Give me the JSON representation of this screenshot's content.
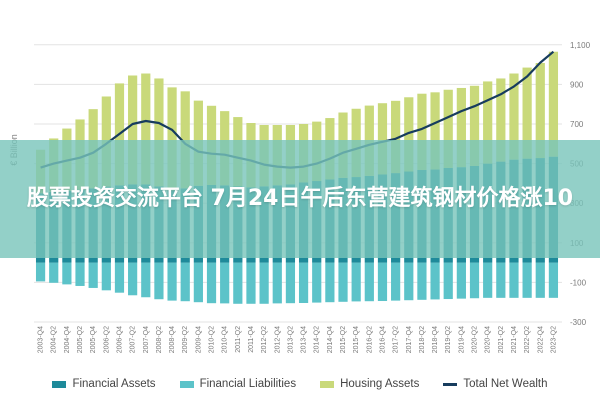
{
  "banner": {
    "title": "股票投资交流平台 7月24日午后东营建筑钢材价格涨10"
  },
  "colors": {
    "financial_assets": "#1e8a9a",
    "financial_liabilities": "#5cc3c9",
    "housing_assets": "#c9d97a",
    "total_net_wealth": "#173c5e"
  },
  "chart_data": {
    "type": "bar",
    "ylabel": "€ Billion",
    "ylim": [
      -300,
      1200
    ],
    "y_ticks_left": [
      -300,
      -100,
      100,
      300,
      500,
      700,
      900,
      1100
    ],
    "y_ticks_right": [
      "-300",
      "-100",
      "100",
      "300",
      "500",
      "700",
      "900",
      "1,100"
    ],
    "grid": true,
    "legend_position": "bottom",
    "categories": [
      "2003-Q4",
      "2004-Q2",
      "2004-Q4",
      "2005-Q2",
      "2005-Q4",
      "2006-Q2",
      "2006-Q4",
      "2007-Q2",
      "2007-Q4",
      "2008-Q2",
      "2008-Q4",
      "2009-Q2",
      "2009-Q4",
      "2010-Q2",
      "2010-Q4",
      "2011-Q2",
      "2011-Q4",
      "2012-Q2",
      "2012-Q4",
      "2013-Q2",
      "2013-Q4",
      "2014-Q2",
      "2014-Q4",
      "2015-Q2",
      "2015-Q4",
      "2016-Q2",
      "2016-Q4",
      "2017-Q2",
      "2017-Q4",
      "2018-Q2",
      "2018-Q4",
      "2019-Q2",
      "2019-Q4",
      "2020-Q2",
      "2020-Q4",
      "2021-Q2",
      "2021-Q4",
      "2022-Q2",
      "2022-Q4",
      "2023-Q2"
    ],
    "series": [
      {
        "name": "Financial Assets",
        "values": [
          350,
          357,
          362,
          368,
          375,
          384,
          390,
          395,
          395,
          385,
          365,
          375,
          388,
          392,
          390,
          385,
          380,
          385,
          390,
          395,
          405,
          412,
          420,
          428,
          432,
          438,
          445,
          452,
          460,
          468,
          470,
          478,
          482,
          488,
          500,
          510,
          520,
          525,
          528,
          535
        ]
      },
      {
        "name": "Financial Liabilities",
        "values": [
          -95,
          -102,
          -110,
          -118,
          -128,
          -140,
          -152,
          -165,
          -175,
          -185,
          -192,
          -195,
          -200,
          -205,
          -206,
          -208,
          -208,
          -208,
          -206,
          -205,
          -204,
          -202,
          -200,
          -198,
          -196,
          -195,
          -194,
          -192,
          -190,
          -188,
          -186,
          -184,
          -182,
          -180,
          -178,
          -178,
          -178,
          -178,
          -178,
          -178
        ]
      },
      {
        "name": "Housing Assets",
        "values": [
          220,
          270,
          315,
          355,
          400,
          455,
          515,
          550,
          560,
          545,
          520,
          490,
          430,
          400,
          375,
          350,
          325,
          310,
          305,
          300,
          295,
          300,
          310,
          330,
          345,
          355,
          360,
          365,
          375,
          385,
          390,
          395,
          400,
          405,
          415,
          420,
          435,
          460,
          480,
          530
        ]
      },
      {
        "name": "Total Net Wealth",
        "values": [
          480,
          500,
          515,
          530,
          555,
          600,
          650,
          700,
          715,
          705,
          670,
          600,
          560,
          550,
          545,
          530,
          515,
          495,
          485,
          480,
          485,
          500,
          525,
          555,
          575,
          595,
          610,
          625,
          655,
          675,
          705,
          735,
          765,
          790,
          820,
          850,
          890,
          940,
          1010,
          1065
        ]
      }
    ]
  }
}
